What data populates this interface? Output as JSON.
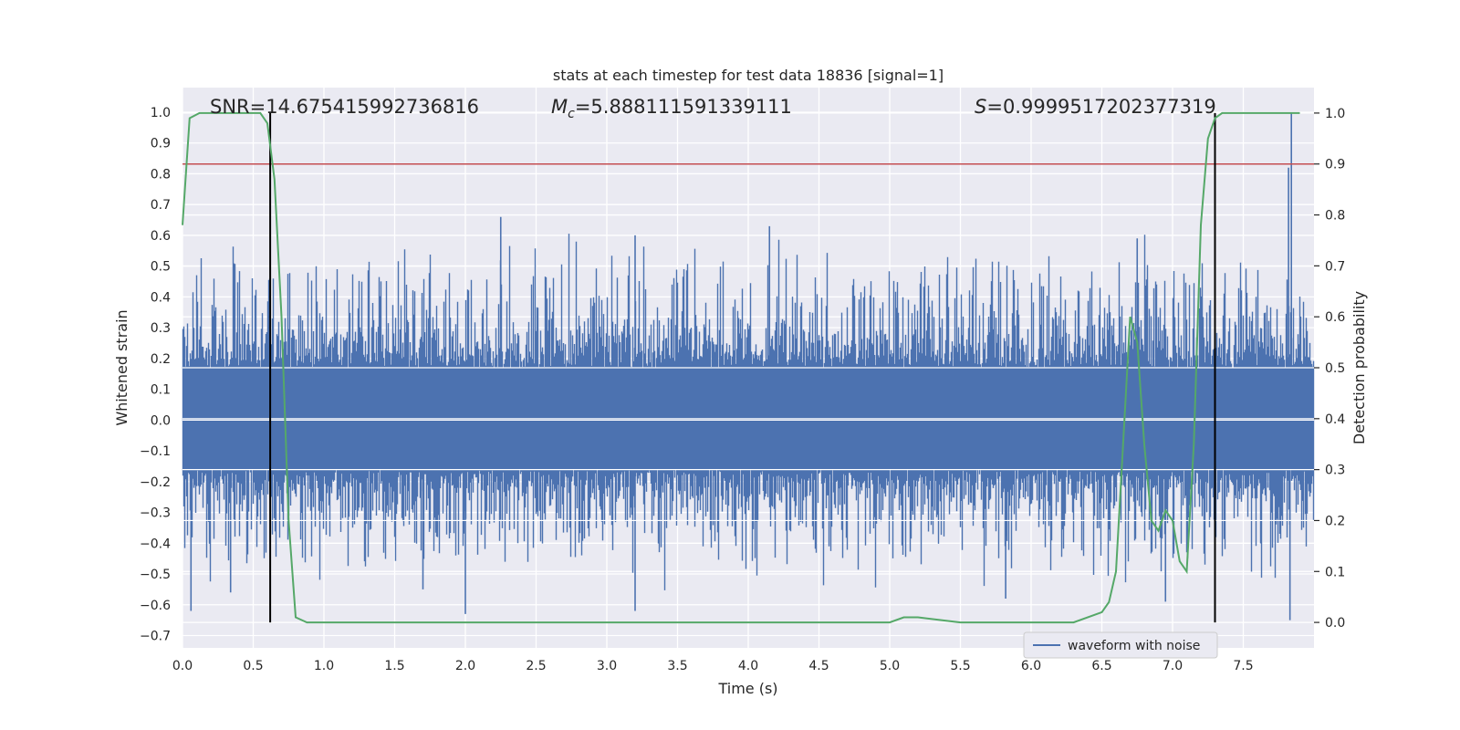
{
  "chart_data": {
    "type": "line",
    "title": "stats at each timestep for test data 18836 [signal=1]",
    "xlabel": "Time (s)",
    "ylabel": "Whitened strain",
    "y2label": "Detection probability",
    "xlim": [
      0.0,
      8.0
    ],
    "ylim": [
      -0.74,
      1.08
    ],
    "y2lim": [
      -0.05,
      1.05
    ],
    "xticks": [
      "0.0",
      "0.5",
      "1.0",
      "1.5",
      "2.0",
      "2.5",
      "3.0",
      "3.5",
      "4.0",
      "4.5",
      "5.0",
      "5.5",
      "6.0",
      "6.5",
      "7.0",
      "7.5"
    ],
    "yticks": [
      "1.0",
      "0.9",
      "0.8",
      "0.7",
      "0.6",
      "0.5",
      "0.4",
      "0.3",
      "0.2",
      "0.1",
      "0.0",
      "−0.1",
      "−0.2",
      "−0.3",
      "−0.4",
      "−0.5",
      "−0.6",
      "−0.7"
    ],
    "y2ticks": [
      "1.0",
      "0.9",
      "0.8",
      "0.7",
      "0.6",
      "0.5",
      "0.4",
      "0.3",
      "0.2",
      "0.1",
      "0.0"
    ],
    "grid": true,
    "legend_position": "bottom-right",
    "annotations": {
      "snr": "SNR=14.675415992736816",
      "mc_symbol": "M",
      "mc_sub": "c",
      "mc_value": "=5.888111591339111",
      "s_symbol": "S",
      "s_value": "=0.9999517202377319"
    },
    "series": [
      {
        "name": "waveform with noise",
        "axis": "left",
        "color": "#4c72b0",
        "style": "dense-noise",
        "duration": 8.0,
        "sample_rate": 1024,
        "core_band": [
          -0.16,
          0.17
        ],
        "typical_spike_max": 0.45,
        "typical_spike_min": -0.4,
        "extremes": [
          {
            "x": 7.84,
            "y": 1.0
          },
          {
            "x": 7.82,
            "y": 0.82
          },
          {
            "x": 7.83,
            "y": -0.65
          },
          {
            "x": 2.25,
            "y": 0.66
          },
          {
            "x": 4.15,
            "y": 0.63
          },
          {
            "x": 2.0,
            "y": -0.63
          },
          {
            "x": 3.2,
            "y": -0.62
          },
          {
            "x": 3.2,
            "y": 0.6
          },
          {
            "x": 0.06,
            "y": -0.62
          },
          {
            "x": 5.82,
            "y": -0.58
          },
          {
            "x": 6.75,
            "y": 0.59
          },
          {
            "x": 6.95,
            "y": -0.59
          },
          {
            "x": 1.7,
            "y": -0.55
          },
          {
            "x": 0.34,
            "y": -0.56
          }
        ]
      },
      {
        "name": "",
        "axis": "right",
        "color": "#55a868",
        "x": [
          0.0,
          0.05,
          0.12,
          0.2,
          0.3,
          0.4,
          0.5,
          0.55,
          0.6,
          0.65,
          0.7,
          0.75,
          0.8,
          0.88,
          1.0,
          1.5,
          2.0,
          2.5,
          3.0,
          3.5,
          4.0,
          4.5,
          5.0,
          5.1,
          5.2,
          5.5,
          6.0,
          6.3,
          6.5,
          6.55,
          6.6,
          6.65,
          6.7,
          6.75,
          6.8,
          6.85,
          6.9,
          6.95,
          7.0,
          7.05,
          7.1,
          7.15,
          7.2,
          7.25,
          7.3,
          7.35,
          7.4,
          7.45,
          7.5,
          7.6,
          7.7,
          7.8,
          7.9
        ],
        "y": [
          0.78,
          0.99,
          1.0,
          1.0,
          1.0,
          1.0,
          1.0,
          1.0,
          0.98,
          0.87,
          0.6,
          0.2,
          0.01,
          0.0,
          0.0,
          0.0,
          0.0,
          0.0,
          0.0,
          0.0,
          0.0,
          0.0,
          0.0,
          0.01,
          0.01,
          0.0,
          0.0,
          0.0,
          0.02,
          0.04,
          0.1,
          0.35,
          0.6,
          0.55,
          0.35,
          0.2,
          0.18,
          0.22,
          0.2,
          0.12,
          0.1,
          0.35,
          0.78,
          0.95,
          0.99,
          1.0,
          1.0,
          1.0,
          1.0,
          1.0,
          1.0,
          1.0,
          1.0
        ]
      },
      {
        "name": "",
        "axis": "right",
        "color": "#c44e52",
        "type": "hline",
        "y": 0.9
      },
      {
        "name": "",
        "axis": "right",
        "color": "#000000",
        "type": "vlines",
        "x": [
          0.62,
          7.3
        ],
        "y_range": [
          0.0,
          1.0
        ]
      }
    ]
  }
}
